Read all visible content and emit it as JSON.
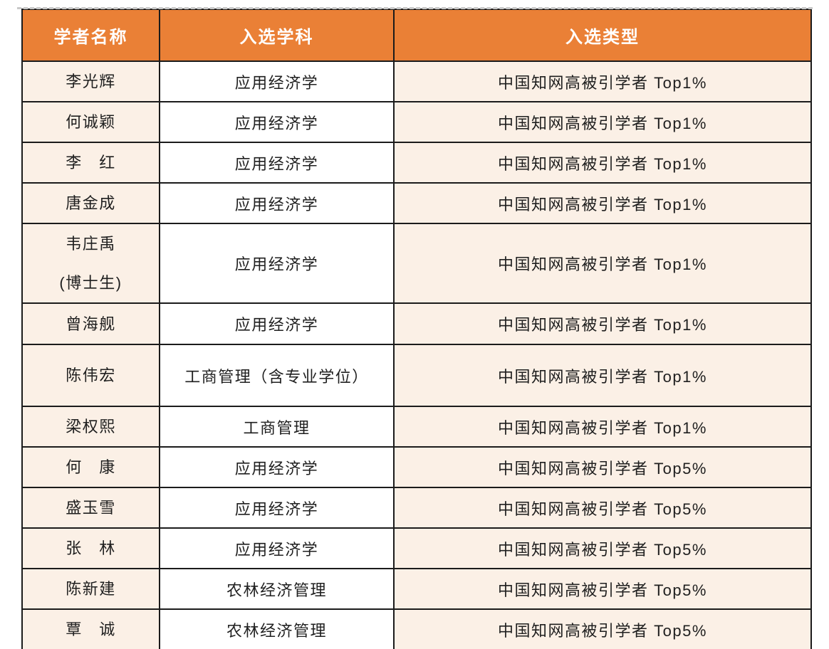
{
  "colors": {
    "header_bg": "#EA8036",
    "header_text": "#FFFFFF",
    "cream_cell_bg": "#FBF0E6",
    "white_cell_bg": "#FFFFFF",
    "border": "#1B1B1B",
    "body_text": "#1F1F1F",
    "page_break_dash": "#C8C8C8",
    "page_bg": "#FFFFFF"
  },
  "table": {
    "columns": [
      {
        "key": "name",
        "label": "学者名称"
      },
      {
        "key": "discipline",
        "label": "入选学科"
      },
      {
        "key": "type",
        "label": "入选类型"
      }
    ],
    "rows": [
      {
        "name": "李光辉",
        "discipline": "应用经济学",
        "type": "中国知网高被引学者 Top1%"
      },
      {
        "name": "何诚颖",
        "discipline": "应用经济学",
        "type": "中国知网高被引学者 Top1%"
      },
      {
        "name": "李　红",
        "discipline": "应用经济学",
        "type": "中国知网高被引学者 Top1%"
      },
      {
        "name": "唐金成",
        "discipline": "应用经济学",
        "type": "中国知网高被引学者 Top1%"
      },
      {
        "name": "韦庄禹\n(博士生)",
        "discipline": "应用经济学",
        "type": "中国知网高被引学者 Top1%"
      },
      {
        "name": "曾海舰",
        "discipline": "应用经济学",
        "type": "中国知网高被引学者 Top1%"
      },
      {
        "name": "陈伟宏",
        "discipline": "工商管理（含专业学位）",
        "type": "中国知网高被引学者 Top1%"
      },
      {
        "name": "梁权熙",
        "discipline": "工商管理",
        "type": "中国知网高被引学者 Top1%"
      },
      {
        "name": "何　康",
        "discipline": "应用经济学",
        "type": "中国知网高被引学者 Top5%"
      },
      {
        "name": "盛玉雪",
        "discipline": "应用经济学",
        "type": "中国知网高被引学者 Top5%"
      },
      {
        "name": "张　林",
        "discipline": "应用经济学",
        "type": "中国知网高被引学者 Top5%"
      },
      {
        "name": "陈新建",
        "discipline": "农林经济管理",
        "type": "中国知网高被引学者 Top5%"
      },
      {
        "name": "覃　诚",
        "discipline": "农林经济管理",
        "type": "中国知网高被引学者 Top5%"
      }
    ]
  }
}
